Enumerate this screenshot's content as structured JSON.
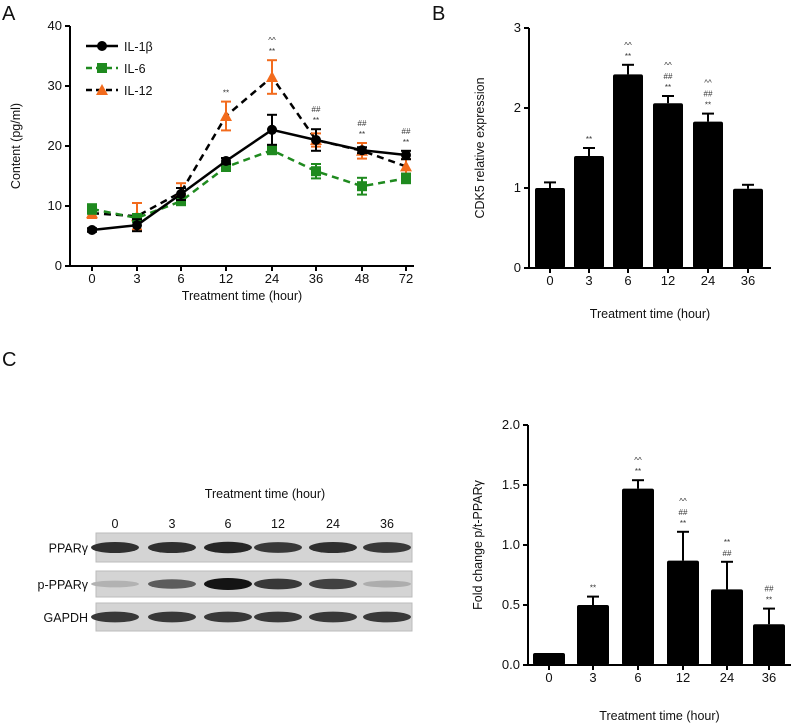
{
  "panels": {
    "a": "A",
    "b": "B",
    "c": "C"
  },
  "chart_data": [
    {
      "id": "A",
      "type": "line",
      "xlabel": "Treatment time (hour)",
      "ylabel": "Content (pg/ml)",
      "ylim": [
        0,
        40
      ],
      "yticks": [
        "0",
        "10",
        "20",
        "30",
        "40"
      ],
      "categories": [
        "0",
        "3",
        "6",
        "12",
        "24",
        "36",
        "48",
        "72"
      ],
      "legend_position": "top-left",
      "series": [
        {
          "name": "IL-1β",
          "color": "#000000",
          "marker": "circle",
          "dash": "solid",
          "values": [
            6.0,
            6.8,
            12.0,
            17.5,
            22.7,
            21.0,
            19.3,
            18.5
          ],
          "errors": [
            0.3,
            1.0,
            1.0,
            0.5,
            2.5,
            1.8,
            0.5,
            0.7
          ]
        },
        {
          "name": "IL-6",
          "color": "#1f8a1f",
          "marker": "square",
          "dash": "dashed",
          "values": [
            9.5,
            8.0,
            10.8,
            16.5,
            19.3,
            15.8,
            13.3,
            14.6
          ],
          "errors": [
            0.8,
            0.5,
            0.6,
            0.6,
            0.5,
            1.2,
            1.4,
            0.8
          ]
        },
        {
          "name": "IL-12",
          "color": "#f26b1d",
          "line_color": "#000000",
          "marker": "triangle",
          "dash": "dashed",
          "values": [
            8.8,
            8.3,
            12.3,
            25.0,
            31.5,
            21.0,
            19.2,
            16.6
          ],
          "errors": [
            0.8,
            2.2,
            1.5,
            2.4,
            2.8,
            1.1,
            1.3,
            1.2
          ]
        }
      ],
      "annotations": [
        [],
        [],
        [],
        [
          "**"
        ],
        [
          "^^",
          "**"
        ],
        [
          "##",
          "**"
        ],
        [
          "##",
          "**"
        ],
        [
          "##",
          "**"
        ]
      ]
    },
    {
      "id": "B",
      "type": "bar",
      "xlabel": "Treatment time (hour)",
      "ylabel": "CDK5 relative expression",
      "ylim": [
        0,
        3
      ],
      "yticks": [
        "0",
        "1",
        "2",
        "3"
      ],
      "categories": [
        "0",
        "3",
        "6",
        "12",
        "24",
        "36"
      ],
      "values": [
        1.0,
        1.4,
        2.42,
        2.06,
        1.83,
        0.99
      ],
      "errors": [
        0.07,
        0.1,
        0.12,
        0.09,
        0.1,
        0.05
      ],
      "annotations": [
        [],
        [
          "**"
        ],
        [
          "^^",
          "**"
        ],
        [
          "^^",
          "##",
          "**"
        ],
        [
          "^^",
          "##",
          "**"
        ],
        []
      ]
    },
    {
      "id": "C",
      "type": "bar",
      "xlabel": "Treatment time (hour)",
      "ylabel": "Fold change p/t-PPARγ",
      "ylim": [
        0,
        2.0
      ],
      "yticks": [
        "0.0",
        "0.5",
        "1.0",
        "1.5",
        "2.0"
      ],
      "categories": [
        "0",
        "3",
        "6",
        "12",
        "24",
        "36"
      ],
      "values": [
        0.1,
        0.5,
        1.47,
        0.87,
        0.63,
        0.34
      ],
      "errors": [
        0.0,
        0.07,
        0.07,
        0.24,
        0.23,
        0.13
      ],
      "annotations": [
        [],
        [
          "**"
        ],
        [
          "^^",
          "**"
        ],
        [
          "^^",
          "##",
          "**"
        ],
        [
          "**",
          "##"
        ],
        [
          "##",
          "**"
        ]
      ]
    }
  ],
  "blot": {
    "title": "Treatment time (hour)",
    "lanes": [
      "0",
      "3",
      "6",
      "12",
      "24",
      "36"
    ],
    "rows": [
      {
        "label": "PPARγ",
        "intensity": [
          0.85,
          0.85,
          0.9,
          0.8,
          0.85,
          0.8
        ]
      },
      {
        "label": "p-PPARγ",
        "intensity": [
          0.12,
          0.6,
          1.0,
          0.8,
          0.75,
          0.15
        ]
      },
      {
        "label": "GAPDH",
        "intensity": [
          0.8,
          0.8,
          0.8,
          0.8,
          0.8,
          0.8
        ]
      }
    ]
  }
}
